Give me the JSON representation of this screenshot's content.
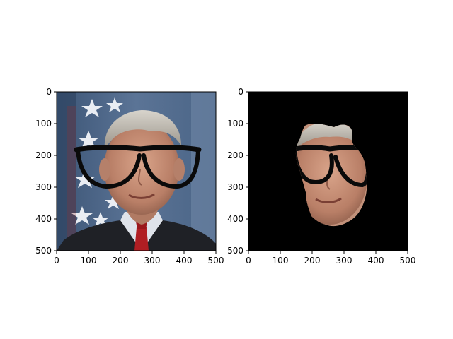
{
  "figure": {
    "background": "#ffffff",
    "axis_color": "#000000",
    "panels": [
      {
        "content": "photo of man with drawn-on black glasses",
        "x_ticks": [
          "0",
          "100",
          "200",
          "300",
          "400",
          "500"
        ],
        "y_ticks": [
          "0",
          "100",
          "200",
          "300",
          "400",
          "500"
        ],
        "xlim": [
          0,
          500
        ],
        "ylim": [
          500,
          0
        ]
      },
      {
        "content": "masked face region on black background with drawn-on glasses",
        "x_ticks": [
          "0",
          "100",
          "200",
          "300",
          "400",
          "500"
        ],
        "y_ticks": [
          "0",
          "100",
          "200",
          "300",
          "400",
          "500"
        ],
        "xlim": [
          0,
          500
        ],
        "ylim": [
          500,
          0
        ]
      }
    ]
  }
}
